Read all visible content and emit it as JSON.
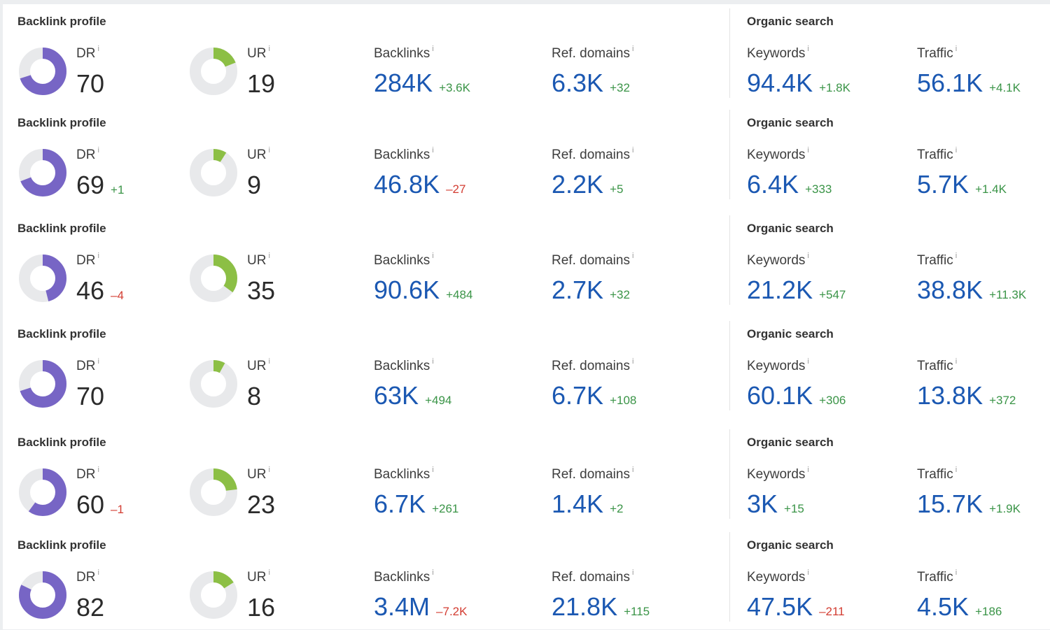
{
  "labels": {
    "backlink_profile": "Backlink profile",
    "organic_search": "Organic search",
    "dr": "DR",
    "ur": "UR",
    "backlinks": "Backlinks",
    "ref_domains": "Ref. domains",
    "keywords": "Keywords",
    "traffic": "Traffic",
    "info": "i"
  },
  "colors": {
    "dr_fill": "#7765c5",
    "ur_fill": "#8cbf45",
    "ring_track": "#e8e9eb",
    "value_blue": "#1b58b2",
    "delta_positive": "#3a9447",
    "delta_negative": "#d33d32"
  },
  "rows": [
    {
      "dr": 70,
      "dr_delta": "",
      "ur": 19,
      "backlinks": "284K",
      "backlinks_delta": "+3.6K",
      "ref_domains": "6.3K",
      "ref_domains_delta": "+32",
      "keywords": "94.4K",
      "keywords_delta": "+1.8K",
      "traffic": "56.1K",
      "traffic_delta": "+4.1K"
    },
    {
      "dr": 69,
      "dr_delta": "+1",
      "ur": 9,
      "backlinks": "46.8K",
      "backlinks_delta": "–27",
      "ref_domains": "2.2K",
      "ref_domains_delta": "+5",
      "keywords": "6.4K",
      "keywords_delta": "+333",
      "traffic": "5.7K",
      "traffic_delta": "+1.4K"
    },
    {
      "dr": 46,
      "dr_delta": "–4",
      "ur": 35,
      "backlinks": "90.6K",
      "backlinks_delta": "+484",
      "ref_domains": "2.7K",
      "ref_domains_delta": "+32",
      "keywords": "21.2K",
      "keywords_delta": "+547",
      "traffic": "38.8K",
      "traffic_delta": "+11.3K"
    },
    {
      "dr": 70,
      "dr_delta": "",
      "ur": 8,
      "backlinks": "63K",
      "backlinks_delta": "+494",
      "ref_domains": "6.7K",
      "ref_domains_delta": "+108",
      "keywords": "60.1K",
      "keywords_delta": "+306",
      "traffic": "13.8K",
      "traffic_delta": "+372"
    },
    {
      "dr": 60,
      "dr_delta": "–1",
      "ur": 23,
      "backlinks": "6.7K",
      "backlinks_delta": "+261",
      "ref_domains": "1.4K",
      "ref_domains_delta": "+2",
      "keywords": "3K",
      "keywords_delta": "+15",
      "traffic": "15.7K",
      "traffic_delta": "+1.9K"
    },
    {
      "dr": 82,
      "dr_delta": "",
      "ur": 16,
      "backlinks": "3.4M",
      "backlinks_delta": "–7.2K",
      "ref_domains": "21.8K",
      "ref_domains_delta": "+115",
      "keywords": "47.5K",
      "keywords_delta": "–211",
      "traffic": "4.5K",
      "traffic_delta": "+186"
    }
  ]
}
